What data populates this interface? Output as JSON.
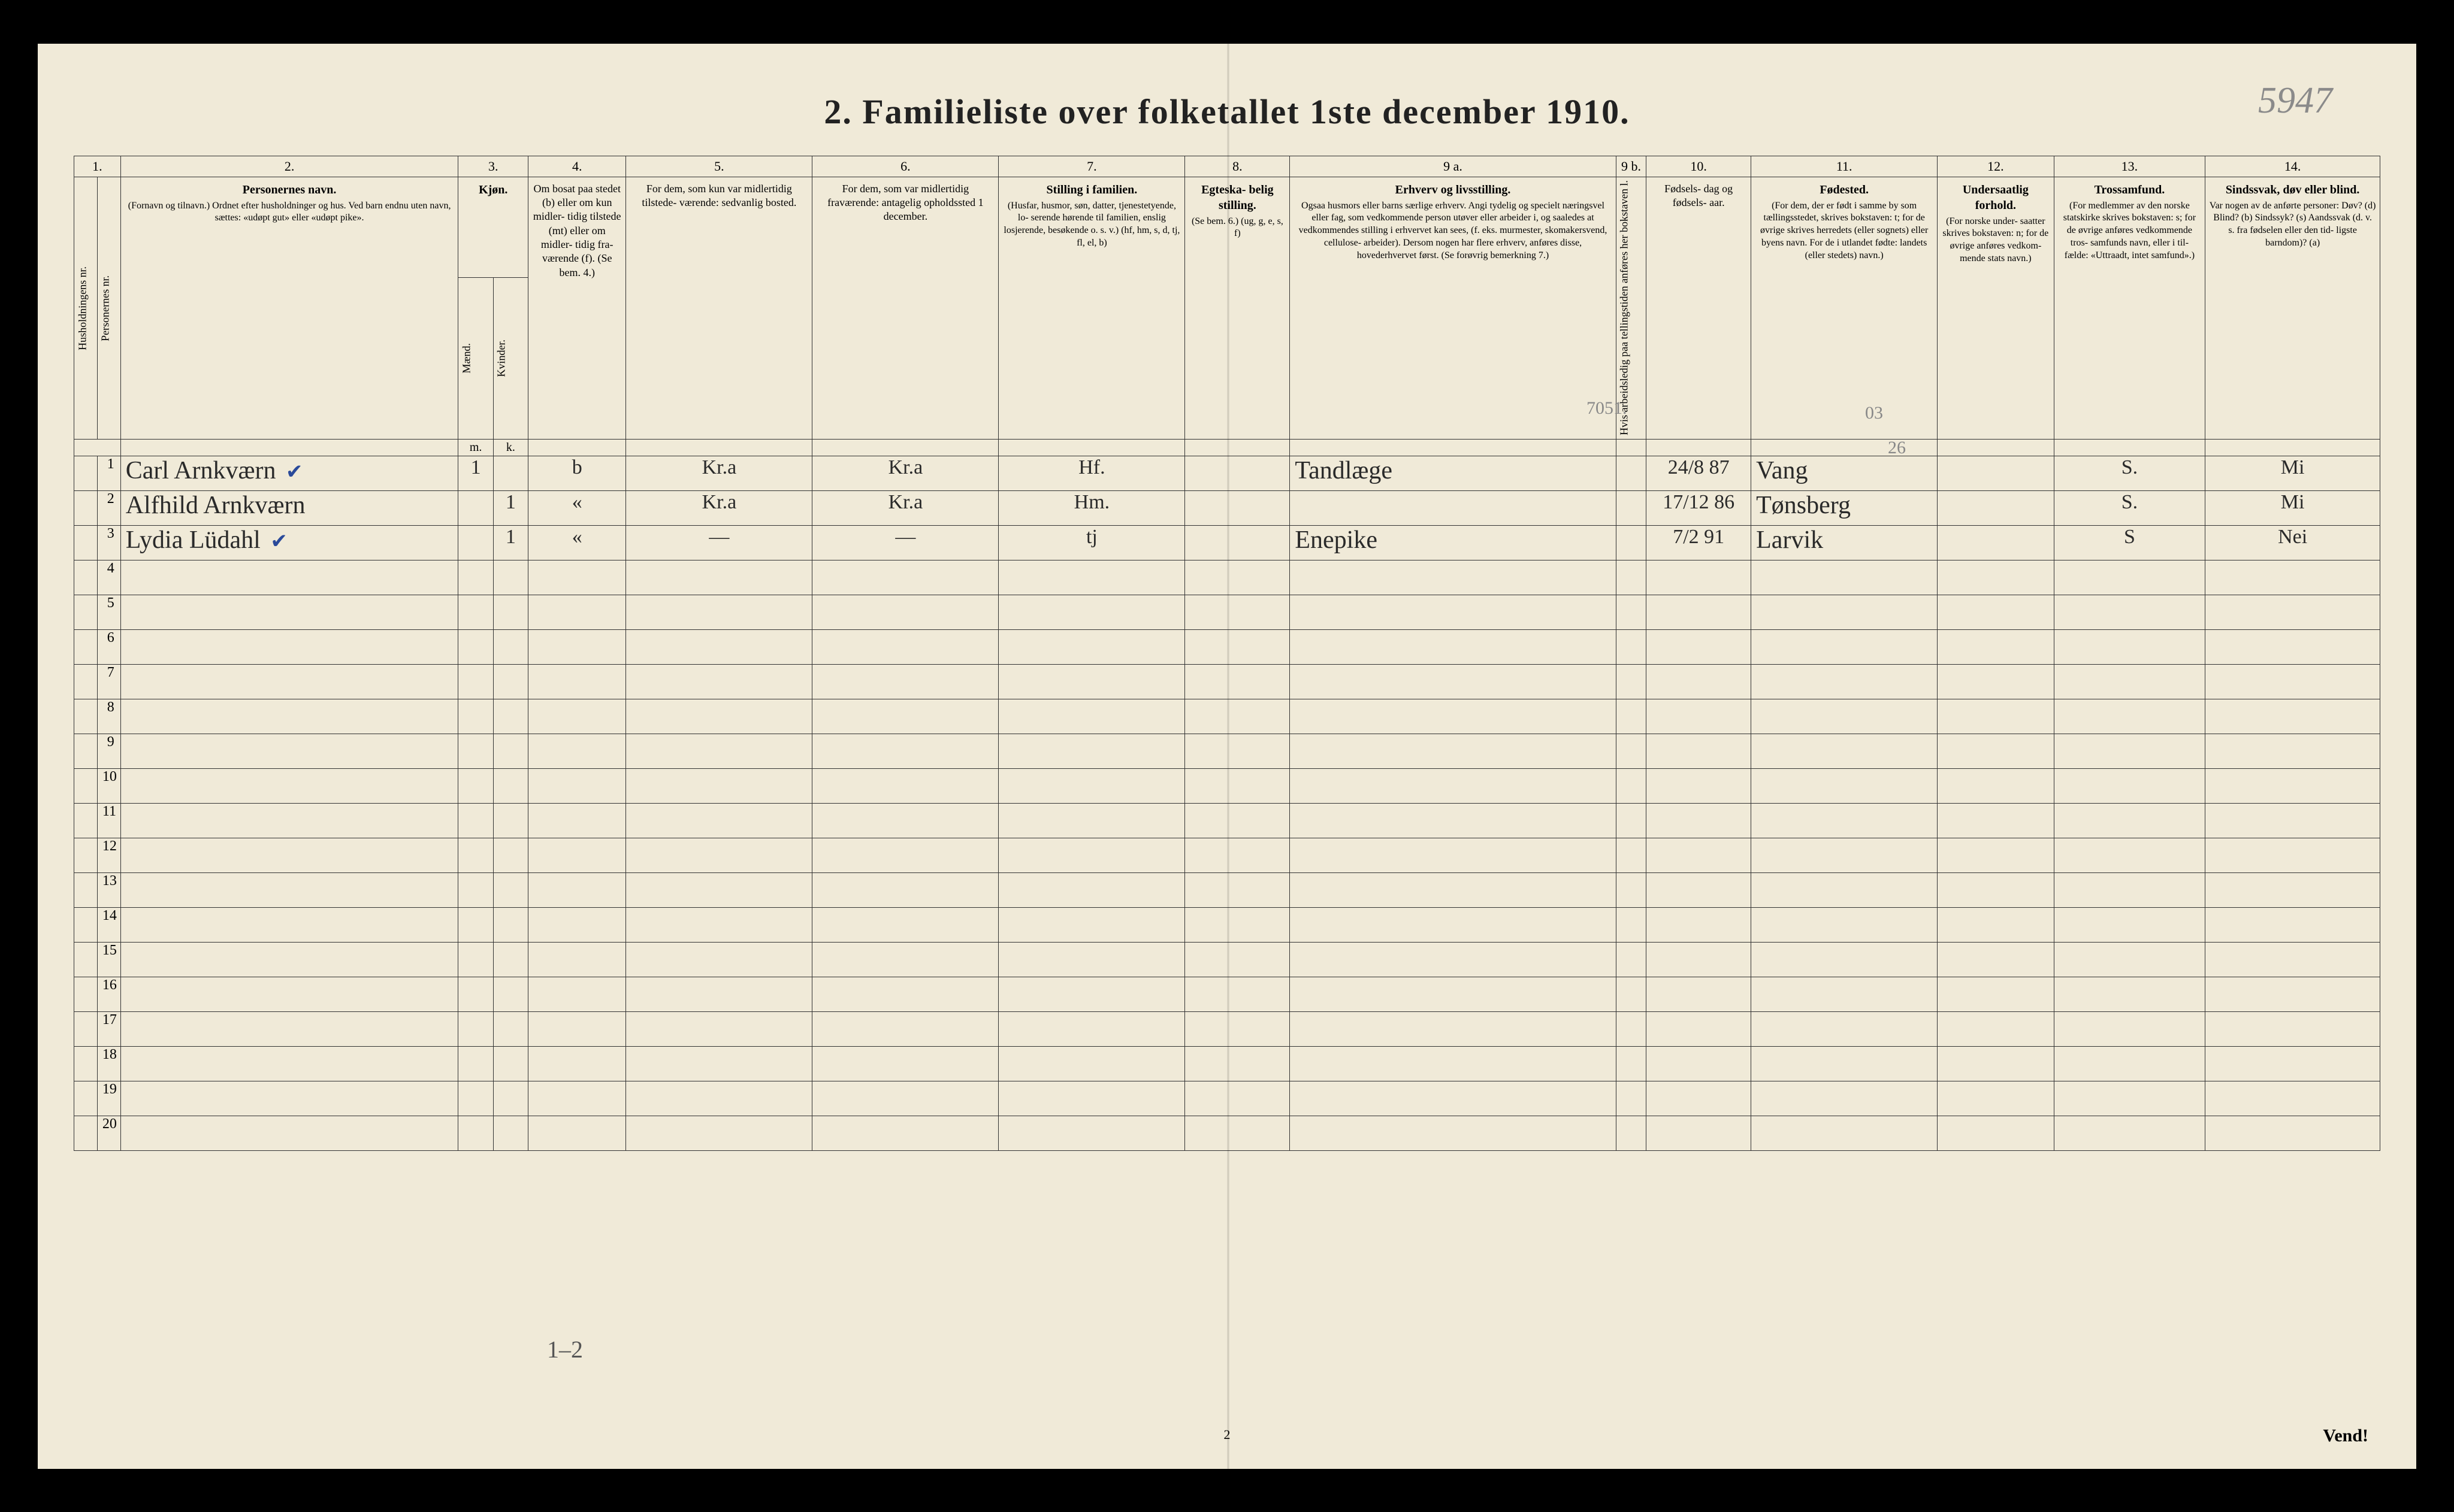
{
  "title": "2.  Familieliste over folketallet 1ste december 1910.",
  "pencil_top_right": "5947",
  "pencil_7051": "7051.",
  "pencil_03": "03",
  "pencil_26": "26",
  "bottom_note": "1–2",
  "page_number": "2",
  "vend": "Vend!",
  "col_numbers": [
    "1.",
    "2.",
    "3.",
    "4.",
    "5.",
    "6.",
    "7.",
    "8.",
    "9 a.",
    "9 b.",
    "10.",
    "11.",
    "12.",
    "13.",
    "14."
  ],
  "col_widths_pct": [
    1.0,
    1.0,
    14.5,
    1.5,
    1.5,
    4.2,
    8.0,
    8.0,
    8.0,
    4.5,
    14.0,
    1.3,
    4.5,
    8.0,
    5.0,
    6.5,
    7.5
  ],
  "headers": {
    "c1": "Husholdningens nr.",
    "c1b": "Personernes nr.",
    "c2_title": "Personernes navn.",
    "c2_sub": "(Fornavn og tilnavn.)\nOrdnet efter husholdninger og hus.\nVed barn endnu uten navn, sættes: «udøpt gut»\neller «udøpt pike».",
    "c3_title": "Kjøn.",
    "c3_m": "Mænd.",
    "c3_k": "Kvinder.",
    "c4": "Om bosat\npaa stedet\n(b) eller om\nkun midler-\ntidig tilstede\n(mt) eller\nom midler-\ntidig fra-\nværende (f).\n(Se bem. 4.)",
    "c5": "For dem, som kun var\nmidlertidig tilstede-\nværende:\n\nsedvanlig bosted.",
    "c6": "For dem, som var\nmidlertidig\nfraværende:\n\nantagelig opholdssted\n1 december.",
    "c7_title": "Stilling i familien.",
    "c7_sub": "(Husfar, husmor, søn,\ndatter, tjenestetyende, lo-\nserende hørende til familien,\nenslig losjerende, besøkende\no. s. v.)\n(hf, hm, s, d, tj, fl,\nel, b)",
    "c8_title": "Egteska-\nbelig\nstilling.",
    "c8_sub": "(Se bem. 6.)\n\n(ug, g,\ne, s, f)",
    "c9a_title": "Erhverv og livsstilling.",
    "c9a_sub": "Ogsaa husmors eller barns særlige erhverv.\nAngi tydelig og specielt næringsvel eller fag, som\nvedkommende person utøver eller arbeider i,\nog saaledes at vedkommendes stilling i erhvervet kan\nsees, (f. eks. murmester, skomakersvend, cellulose-\narbeider). Dersom nogen har flere erhverv,\nanføres disse, hovederhvervet først.\n(Se forøvrig bemerkning 7.)",
    "c9b": "Hvis arbeidsledig\npaa tellingstiden anføres\nher bokstaven l.",
    "c10": "Fødsels-\ndag\nog\nfødsels-\naar.",
    "c11_title": "Fødested.",
    "c11_sub": "(For dem, der er født\ni samme by som\ntællingsstedet,\nskrives bokstaven: t;\nfor de øvrige skrives\nherredets (eller sognets)\neller byens navn.\nFor de i utlandet fødte:\nlandets (eller stedets)\nnavn.)",
    "c12_title": "Undersaatlig\nforhold.",
    "c12_sub": "(For norske under-\nsaatter skrives\nbokstaven: n;\nfor de øvrige\nanføres vedkom-\nmende stats navn.)",
    "c13_title": "Trossamfund.",
    "c13_sub": "(For medlemmer av\nden norske statskirke\nskrives bokstaven: s;\nfor de øvrige anføres\nvedkommende tros-\nsamfunds navn, eller i til-\nfælde: «Uttraadt, intet\nsamfund».)",
    "c14_title": "Sindssvak, døv\neller blind.",
    "c14_sub": "Var nogen av de anførte\npersoner:\nDøv?        (d)\nBlind?       (b)\nSindssyk?  (s)\nAandssvak (d. v. s. fra\nfødselen eller den tid-\nligste barndom)? (a)"
  },
  "mk": {
    "m": "m.",
    "k": "k."
  },
  "row_count": 20,
  "rows": [
    {
      "n": "1",
      "name": "Carl Arnkværn",
      "check": true,
      "m": "1",
      "k": "",
      "bosat": "b",
      "c5": "Kr.a",
      "c6": "Kr.a",
      "stilling": "Hf.",
      "egteskab": "",
      "erhverv": "Tandlæge",
      "fodselsdag": "24/8 87",
      "fodested": "Vang",
      "undersaat": "",
      "tros": "S.",
      "c14": "Mi"
    },
    {
      "n": "2",
      "name": "Alfhild Arnkværn",
      "check": false,
      "m": "",
      "k": "1",
      "bosat": "«",
      "c5": "Kr.a",
      "c6": "Kr.a",
      "stilling": "Hm.",
      "egteskab": "",
      "erhverv": "",
      "fodselsdag": "17/12 86",
      "fodested": "Tønsberg",
      "undersaat": "",
      "tros": "S.",
      "c14": "Mi"
    },
    {
      "n": "3",
      "name": "Lydia Lüdahl",
      "check": true,
      "m": "",
      "k": "1",
      "bosat": "«",
      "c5": "—",
      "c6": "—",
      "stilling": "tj",
      "egteskab": "",
      "erhverv": "Enepike",
      "fodselsdag": "7/2 91",
      "fodested": "Larvik",
      "undersaat": "",
      "tros": "S",
      "c14": "Nei"
    }
  ],
  "colors": {
    "bg": "#000000",
    "paper": "#f0ead8",
    "ink": "#222222",
    "hand": "#2a2a2a",
    "pencil": "#8a8a8a",
    "border": "#333333",
    "check": "#2a4a9a"
  },
  "fonts": {
    "title_size": 58,
    "header_size": 18,
    "header_title_size": 20,
    "hand_size": 42,
    "colnum_size": 22
  }
}
